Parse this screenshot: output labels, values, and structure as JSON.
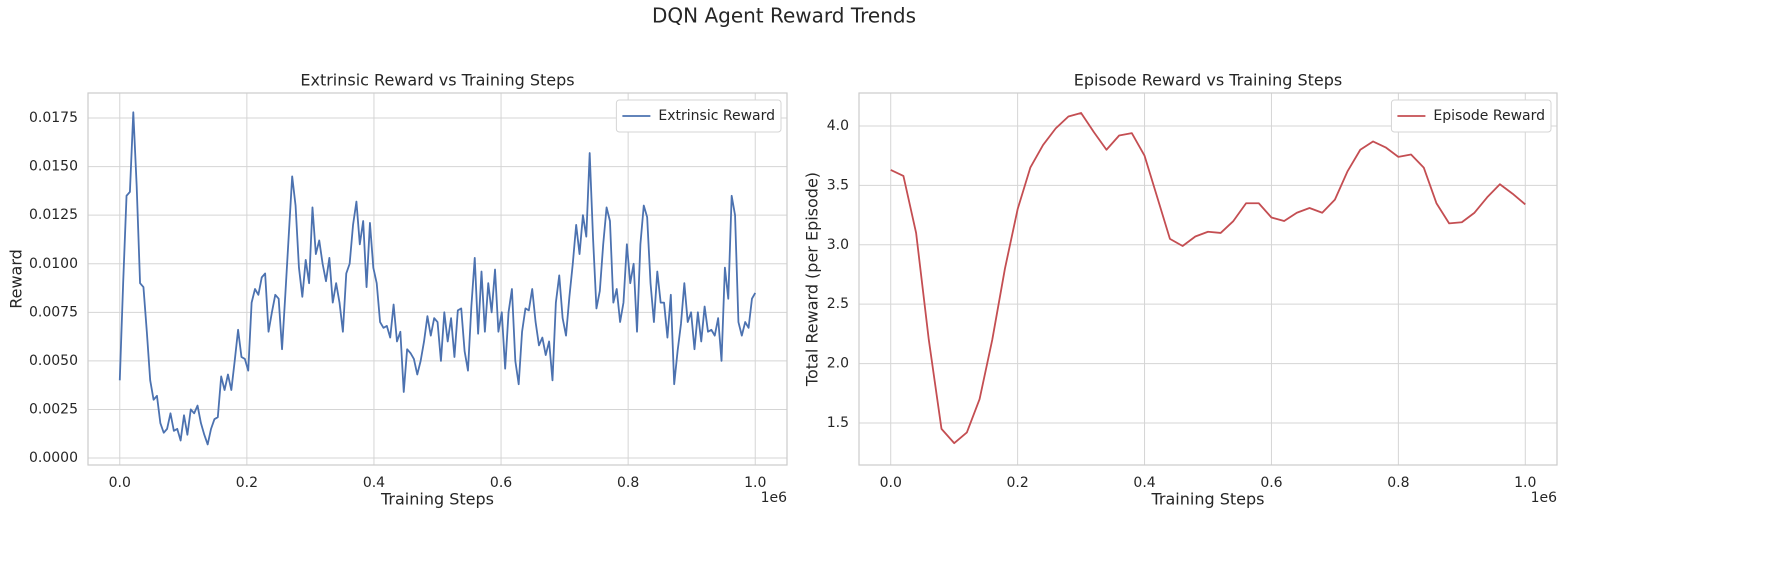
{
  "title": "DQN Agent Reward Trends",
  "chart_data": [
    {
      "type": "line",
      "title": "Extrinsic Reward vs Training Steps",
      "xlabel": "Training Steps",
      "ylabel": "Reward",
      "x_offset_label": "1e6",
      "x": [
        0,
        5320,
        10640,
        15960,
        21280,
        26600,
        31920,
        37240,
        42560,
        47880,
        53200,
        58520,
        63840,
        69160,
        74480,
        79800,
        85120,
        90440,
        95760,
        101080,
        106400,
        111720,
        117040,
        122360,
        127680,
        133000,
        138320,
        143640,
        148960,
        154280,
        159600,
        164920,
        170240,
        175560,
        180880,
        186200,
        191520,
        196840,
        202160,
        207480,
        212800,
        218120,
        223440,
        228760,
        234080,
        239400,
        244720,
        250040,
        255360,
        260680,
        266000,
        271320,
        276640,
        281960,
        287280,
        292600,
        297920,
        303240,
        308560,
        313880,
        319200,
        324520,
        329840,
        335160,
        340480,
        345800,
        351120,
        356440,
        361760,
        367080,
        372400,
        377720,
        383040,
        388360,
        393680,
        399000,
        404320,
        409640,
        414960,
        420280,
        425600,
        430920,
        436240,
        441560,
        446880,
        452200,
        457520,
        462840,
        468160,
        473480,
        478800,
        484120,
        489440,
        494760,
        500080,
        505400,
        510720,
        516040,
        521360,
        526680,
        532000,
        537320,
        542640,
        547960,
        553280,
        558600,
        563920,
        569240,
        574560,
        579880,
        585200,
        590520,
        595840,
        601160,
        606480,
        611800,
        617120,
        622440,
        627760,
        633080,
        638400,
        643720,
        649040,
        654360,
        659680,
        665000,
        670320,
        675640,
        680960,
        686280,
        691600,
        696920,
        702240,
        707560,
        712880,
        718200,
        723520,
        728840,
        734160,
        739480,
        744800,
        750120,
        755440,
        760760,
        766080,
        771400,
        776720,
        782040,
        787360,
        792680,
        798000,
        803320,
        808640,
        813960,
        819280,
        824600,
        829920,
        835240,
        840560,
        845880,
        851200,
        856520,
        861840,
        867160,
        872480,
        877800,
        883120,
        888440,
        893760,
        899080,
        904400,
        909720,
        915040,
        920360,
        925680,
        931000,
        936320,
        941640,
        946960,
        952280,
        957600,
        962920,
        968240,
        973560,
        978880,
        984200,
        989520,
        994840,
        1000000
      ],
      "series": [
        {
          "name": "Extrinsic Reward",
          "color": "#4c72b0",
          "values": [
            0.004,
            0.009,
            0.0135,
            0.0137,
            0.0178,
            0.014,
            0.009,
            0.0088,
            0.0065,
            0.004,
            0.003,
            0.0032,
            0.0018,
            0.0013,
            0.0015,
            0.0023,
            0.0014,
            0.0015,
            0.0009,
            0.0022,
            0.0012,
            0.0025,
            0.0023,
            0.0027,
            0.0018,
            0.0012,
            0.0007,
            0.0015,
            0.002,
            0.0021,
            0.0042,
            0.0035,
            0.0043,
            0.0035,
            0.005,
            0.0066,
            0.0052,
            0.0051,
            0.0045,
            0.008,
            0.0087,
            0.0084,
            0.0093,
            0.0095,
            0.0065,
            0.0075,
            0.0084,
            0.0082,
            0.0056,
            0.0085,
            0.0115,
            0.0145,
            0.013,
            0.0098,
            0.0083,
            0.0102,
            0.009,
            0.0129,
            0.0105,
            0.0112,
            0.01,
            0.0091,
            0.0103,
            0.008,
            0.009,
            0.008,
            0.0065,
            0.0095,
            0.01,
            0.012,
            0.0132,
            0.011,
            0.0122,
            0.0088,
            0.0121,
            0.0098,
            0.009,
            0.007,
            0.0067,
            0.0068,
            0.0062,
            0.0079,
            0.006,
            0.0065,
            0.0034,
            0.0056,
            0.0054,
            0.0051,
            0.0043,
            0.005,
            0.006,
            0.0073,
            0.0063,
            0.0072,
            0.007,
            0.005,
            0.0075,
            0.006,
            0.0072,
            0.0052,
            0.0076,
            0.0077,
            0.0055,
            0.0045,
            0.0078,
            0.0103,
            0.0064,
            0.0096,
            0.0065,
            0.009,
            0.0075,
            0.0097,
            0.0065,
            0.0075,
            0.0046,
            0.0075,
            0.0087,
            0.005,
            0.0038,
            0.0065,
            0.0077,
            0.0076,
            0.0087,
            0.007,
            0.0058,
            0.0062,
            0.0053,
            0.006,
            0.004,
            0.008,
            0.0094,
            0.0072,
            0.0063,
            0.0083,
            0.01,
            0.012,
            0.0105,
            0.0125,
            0.0114,
            0.0157,
            0.0113,
            0.0077,
            0.0086,
            0.011,
            0.0129,
            0.0122,
            0.008,
            0.0087,
            0.007,
            0.008,
            0.011,
            0.009,
            0.01,
            0.0065,
            0.011,
            0.013,
            0.0124,
            0.009,
            0.007,
            0.0096,
            0.008,
            0.008,
            0.0062,
            0.0084,
            0.0038,
            0.0055,
            0.0069,
            0.009,
            0.007,
            0.0075,
            0.0056,
            0.0075,
            0.006,
            0.0078,
            0.0065,
            0.0066,
            0.0063,
            0.0072,
            0.005,
            0.0098,
            0.0082,
            0.0135,
            0.0125,
            0.007,
            0.0063,
            0.007,
            0.0067,
            0.0082,
            0.0085
          ]
        }
      ],
      "xlim": [
        -50000,
        1050000
      ],
      "ylim": [
        -0.00036,
        0.01879
      ],
      "xticks": [
        {
          "value": 0,
          "label": "0.0"
        },
        {
          "value": 200000,
          "label": "0.2"
        },
        {
          "value": 400000,
          "label": "0.4"
        },
        {
          "value": 600000,
          "label": "0.6"
        },
        {
          "value": 800000,
          "label": "0.8"
        },
        {
          "value": 1000000,
          "label": "1.0"
        }
      ],
      "yticks": [
        {
          "value": 0,
          "label": "0.0000"
        },
        {
          "value": 0.0025,
          "label": "0.0025"
        },
        {
          "value": 0.005,
          "label": "0.0050"
        },
        {
          "value": 0.0075,
          "label": "0.0075"
        },
        {
          "value": 0.01,
          "label": "0.0100"
        },
        {
          "value": 0.0125,
          "label": "0.0125"
        },
        {
          "value": 0.015,
          "label": "0.0150"
        },
        {
          "value": 0.0175,
          "label": "0.0175"
        }
      ],
      "grid": true,
      "legend": "upper right"
    },
    {
      "type": "line",
      "title": "Episode Reward vs Training Steps",
      "xlabel": "Training Steps",
      "ylabel": "Total Reward (per Episode)",
      "x_offset_label": "1e6",
      "x": [
        0,
        20000,
        40000,
        60000,
        80000,
        100000,
        120000,
        140000,
        160000,
        180000,
        200000,
        220000,
        240000,
        260000,
        280000,
        300000,
        320000,
        340000,
        360000,
        380000,
        400000,
        420000,
        440000,
        460000,
        480000,
        500000,
        520000,
        540000,
        560000,
        580000,
        600000,
        620000,
        640000,
        660000,
        680000,
        700000,
        720000,
        740000,
        760000,
        780000,
        800000,
        820000,
        840000,
        860000,
        880000,
        900000,
        920000,
        940000,
        960000,
        980000,
        1000000
      ],
      "series": [
        {
          "name": "Episode Reward",
          "color": "#c44e52",
          "values": [
            3.63,
            3.58,
            3.1,
            2.2,
            1.45,
            1.33,
            1.42,
            1.7,
            2.2,
            2.8,
            3.3,
            3.65,
            3.84,
            3.98,
            4.08,
            4.11,
            3.95,
            3.8,
            3.92,
            3.94,
            3.75,
            3.4,
            3.05,
            2.99,
            3.07,
            3.11,
            3.1,
            3.2,
            3.35,
            3.35,
            3.23,
            3.2,
            3.27,
            3.31,
            3.27,
            3.38,
            3.62,
            3.8,
            3.87,
            3.82,
            3.74,
            3.76,
            3.65,
            3.35,
            3.18,
            3.19,
            3.27,
            3.4,
            3.51,
            3.43,
            3.34
          ]
        }
      ],
      "xlim": [
        -50000,
        1050000
      ],
      "ylim": [
        1.146,
        4.278
      ],
      "xticks": [
        {
          "value": 0,
          "label": "0.0"
        },
        {
          "value": 200000,
          "label": "0.2"
        },
        {
          "value": 400000,
          "label": "0.4"
        },
        {
          "value": 600000,
          "label": "0.6"
        },
        {
          "value": 800000,
          "label": "0.8"
        },
        {
          "value": 1000000,
          "label": "1.0"
        }
      ],
      "yticks": [
        1.5,
        {
          "value": 2,
          "label": "2.0"
        },
        2.5,
        {
          "value": 3,
          "label": "3.0"
        },
        3.5,
        {
          "value": 4,
          "label": "4.0"
        }
      ],
      "grid": true,
      "legend": "upper right"
    }
  ]
}
